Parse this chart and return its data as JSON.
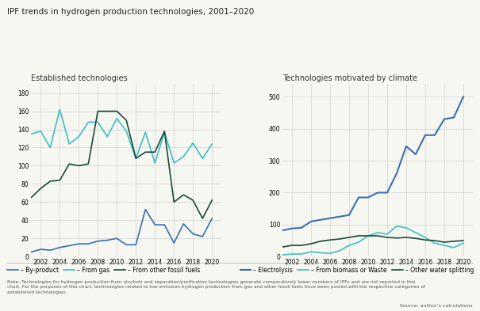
{
  "title": "IPF trends in hydrogen production technologies, 2001–2020",
  "years": [
    2001,
    2002,
    2003,
    2004,
    2005,
    2006,
    2007,
    2008,
    2009,
    2010,
    2011,
    2012,
    2013,
    2014,
    2015,
    2016,
    2017,
    2018,
    2019,
    2020
  ],
  "left_subtitle": "Established technologies",
  "right_subtitle": "Technologies motivated by climate",
  "left_series": {
    "By-product": [
      5,
      8,
      7,
      10,
      12,
      14,
      14,
      17,
      18,
      20,
      13,
      13,
      52,
      35,
      35,
      15,
      36,
      25,
      22,
      42
    ],
    "From gas": [
      135,
      138,
      120,
      162,
      124,
      132,
      148,
      148,
      132,
      152,
      138,
      108,
      137,
      103,
      137,
      103,
      110,
      125,
      108,
      124
    ],
    "From other fossil fuels": [
      65,
      75,
      83,
      84,
      102,
      100,
      102,
      160,
      160,
      160,
      150,
      108,
      115,
      115,
      138,
      60,
      68,
      62,
      42,
      62
    ]
  },
  "right_series": {
    "Electrolysis": [
      82,
      88,
      90,
      110,
      115,
      120,
      125,
      130,
      185,
      185,
      200,
      200,
      260,
      345,
      320,
      380,
      380,
      430,
      435,
      500
    ],
    "From biomass or waste": [
      5,
      8,
      8,
      15,
      12,
      10,
      18,
      35,
      45,
      65,
      75,
      70,
      95,
      90,
      75,
      60,
      42,
      35,
      28,
      42
    ],
    "Other water splitting": [
      30,
      35,
      35,
      40,
      48,
      52,
      55,
      60,
      65,
      65,
      65,
      60,
      58,
      60,
      57,
      52,
      50,
      45,
      48,
      50
    ]
  },
  "left_ylim": [
    0,
    190
  ],
  "right_ylim": [
    0,
    540
  ],
  "left_yticks": [
    0,
    20,
    40,
    60,
    80,
    100,
    120,
    140,
    160,
    180
  ],
  "right_yticks": [
    0,
    100,
    200,
    300,
    400,
    500
  ],
  "xtick_years": [
    2002,
    2004,
    2006,
    2008,
    2010,
    2012,
    2014,
    2016,
    2018,
    2020
  ],
  "colors": {
    "By-product": "#3a6faf",
    "From gas": "#3dbfbf",
    "From other fossil fuels": "#1a4a3a",
    "Electrolysis": "#3a6faf",
    "From biomass or waste": "#3dbfbf",
    "Other water splitting": "#1a4a3a"
  },
  "note": "Note: Technologies for hydrogen production from alcohols and separation/purification technologies generate comparatively lower numbers of IPFs and are not reported in this\nchart. For the purposes of this chart, technologies related to low-emission hydrogen production from gas and other fossil fuels have been pooled with the respective categories of\nestablished technologies.",
  "source": "Source: author’s calculations",
  "background_color": "#f7f7f2",
  "grid_color": "#d0d0d0"
}
